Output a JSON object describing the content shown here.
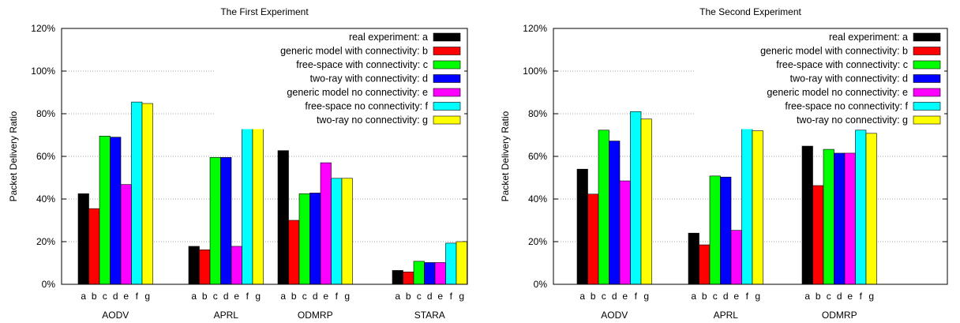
{
  "chart_data": [
    {
      "type": "bar",
      "title": "The First Experiment",
      "ylabel": "Packet Delivery Ratio",
      "xlabel": "",
      "ylim": [
        0,
        120
      ],
      "yticks": [
        "0%",
        "20%",
        "40%",
        "60%",
        "80%",
        "100%",
        "120%"
      ],
      "categories": [
        "AODV",
        "APRL",
        "ODMRP",
        "STARA"
      ],
      "sub_labels": [
        "a",
        "b",
        "c",
        "d",
        "e",
        "f",
        "g"
      ],
      "grid": true,
      "legend_position": "top-right",
      "series": [
        {
          "name": "real experiment: a",
          "color": "#000000",
          "values": [
            42.5,
            17.8,
            62.7,
            6.5
          ]
        },
        {
          "name": "generic model with connectivity: b",
          "color": "#ff0000",
          "values": [
            35.5,
            16.2,
            30.0,
            5.8
          ]
        },
        {
          "name": "free-space with connectivity: c",
          "color": "#00ff00",
          "values": [
            69.5,
            59.5,
            42.5,
            10.8
          ]
        },
        {
          "name": "two-ray with connectivity: d",
          "color": "#0000ff",
          "values": [
            69.0,
            59.5,
            42.8,
            10.2
          ]
        },
        {
          "name": "generic model no connectivity: e",
          "color": "#ff00ff",
          "values": [
            46.8,
            17.8,
            57.0,
            10.2
          ]
        },
        {
          "name": "free-space no connectivity: f",
          "color": "#00ffff",
          "values": [
            85.5,
            80.2,
            49.7,
            19.3
          ]
        },
        {
          "name": "two-ray no connectivity: g",
          "color": "#ffff00",
          "values": [
            84.8,
            78.8,
            49.7,
            20.0
          ]
        }
      ]
    },
    {
      "type": "bar",
      "title": "The Second Experiment",
      "ylabel": "Packet Delivery Ratio",
      "xlabel": "",
      "ylim": [
        0,
        120
      ],
      "yticks": [
        "0%",
        "20%",
        "40%",
        "60%",
        "80%",
        "100%",
        "120%"
      ],
      "categories": [
        "AODV",
        "APRL",
        "ODMRP"
      ],
      "sub_labels": [
        "a",
        "b",
        "c",
        "d",
        "e",
        "f",
        "g"
      ],
      "grid": true,
      "legend_position": "top-right",
      "series": [
        {
          "name": "real experiment: a",
          "color": "#000000",
          "values": [
            54.0,
            24.0,
            64.8
          ]
        },
        {
          "name": "generic model with connectivity: b",
          "color": "#ff0000",
          "values": [
            42.3,
            18.5,
            46.3
          ]
        },
        {
          "name": "free-space with connectivity: c",
          "color": "#00ff00",
          "values": [
            72.3,
            50.8,
            63.3
          ]
        },
        {
          "name": "two-ray with connectivity: d",
          "color": "#0000ff",
          "values": [
            67.2,
            50.3,
            61.5
          ]
        },
        {
          "name": "generic model no connectivity: e",
          "color": "#ff00ff",
          "values": [
            48.5,
            25.3,
            61.5
          ]
        },
        {
          "name": "free-space no connectivity: f",
          "color": "#00ffff",
          "values": [
            81.0,
            75.8,
            72.3
          ]
        },
        {
          "name": "two-ray no connectivity: g",
          "color": "#ffff00",
          "values": [
            77.5,
            72.0,
            70.8
          ]
        }
      ]
    }
  ]
}
